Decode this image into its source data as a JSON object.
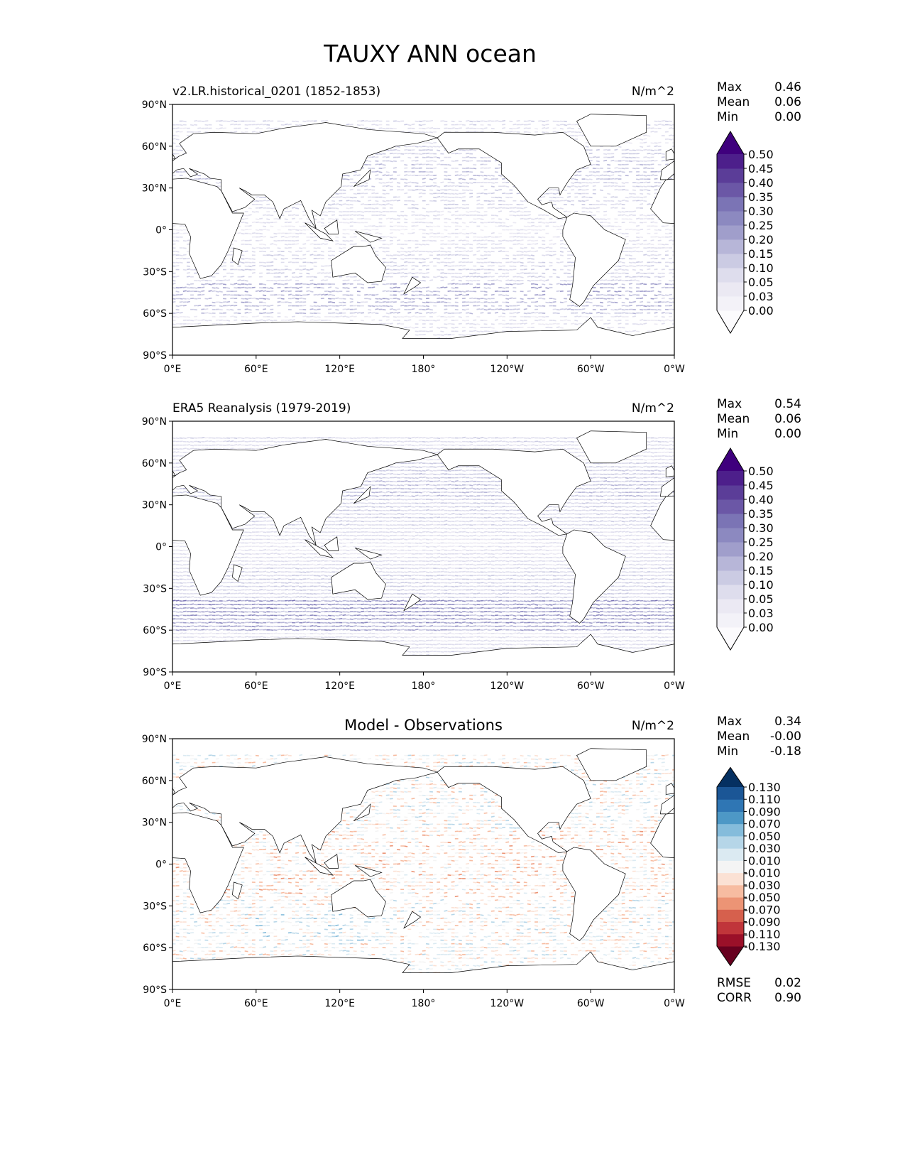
{
  "figure": {
    "title": "TAUXY ANN ocean"
  },
  "chart_data": {
    "type": "map",
    "variable": "TAUXY",
    "season": "ANN",
    "region": "ocean",
    "x_ticks": [
      "0°E",
      "60°E",
      "120°E",
      "180°",
      "120°W",
      "60°W",
      "0°W"
    ],
    "y_ticks": [
      "90°N",
      "60°N",
      "30°N",
      "0°",
      "30°S",
      "60°S",
      "90°S"
    ],
    "lon_range": [
      0,
      360
    ],
    "lat_range": [
      -90,
      90
    ],
    "panels": [
      {
        "title_left": "v2.LR.historical_0201 (1852-1853)",
        "title_center": "",
        "units": "N/m^2",
        "stats": [
          {
            "label": "Max",
            "value": "0.46"
          },
          {
            "label": "Mean",
            "value": "0.06"
          },
          {
            "label": "Min",
            "value": "0.00"
          }
        ],
        "colormap": "Purples",
        "levels": [
          "0.00",
          "0.03",
          "0.05",
          "0.10",
          "0.15",
          "0.20",
          "0.25",
          "0.30",
          "0.35",
          "0.40",
          "0.45",
          "0.50"
        ],
        "colors": [
          "#fcfbfd",
          "#f3f2f8",
          "#ebe9f3",
          "#dedded",
          "#cbcbe3",
          "#b7b6d8",
          "#a09ecb",
          "#8c89c0",
          "#7b74b5",
          "#6b57a6",
          "#5b3d98",
          "#4d1f8b",
          "#3f007d"
        ]
      },
      {
        "title_left": "ERA5 Reanalysis (1979-2019)",
        "title_center": "",
        "units": "N/m^2",
        "stats": [
          {
            "label": "Max",
            "value": "0.54"
          },
          {
            "label": "Mean",
            "value": "0.06"
          },
          {
            "label": "Min",
            "value": "0.00"
          }
        ],
        "colormap": "Purples",
        "levels": [
          "0.00",
          "0.03",
          "0.05",
          "0.10",
          "0.15",
          "0.20",
          "0.25",
          "0.30",
          "0.35",
          "0.40",
          "0.45",
          "0.50"
        ],
        "colors": [
          "#fcfbfd",
          "#f3f2f8",
          "#ebe9f3",
          "#dedded",
          "#cbcbe3",
          "#b7b6d8",
          "#a09ecb",
          "#8c89c0",
          "#7b74b5",
          "#6b57a6",
          "#5b3d98",
          "#4d1f8b",
          "#3f007d"
        ]
      },
      {
        "title_left": "",
        "title_center": "Model - Observations",
        "units": "N/m^2",
        "stats": [
          {
            "label": "Max",
            "value": "0.34"
          },
          {
            "label": "Mean",
            "value": "-0.00"
          },
          {
            "label": "Min",
            "value": "-0.18"
          }
        ],
        "colormap": "RdBu_r",
        "levels": [
          "-0.130",
          "-0.110",
          "-0.090",
          "-0.070",
          "-0.050",
          "-0.030",
          "-0.010",
          "0.010",
          "0.030",
          "0.050",
          "0.070",
          "0.090",
          "0.110",
          "0.130"
        ],
        "colors": [
          "#67001f",
          "#9b1029",
          "#c0353a",
          "#d6604d",
          "#ec9475",
          "#f7bca1",
          "#fbe1d4",
          "#f4f4f4",
          "#dbeaf2",
          "#b6d6e8",
          "#85bcdb",
          "#4d98c6",
          "#2f76b4",
          "#1b5696",
          "#053061"
        ],
        "extra_stats": [
          {
            "label": "RMSE",
            "value": "0.02"
          },
          {
            "label": "CORR",
            "value": "0.90"
          }
        ]
      }
    ]
  }
}
